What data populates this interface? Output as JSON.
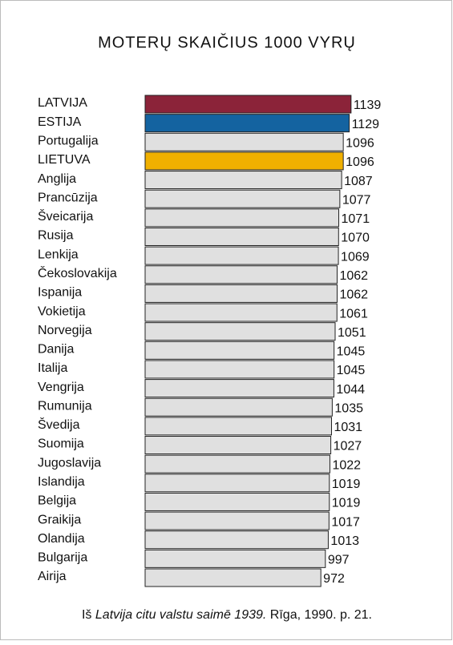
{
  "chart_data": {
    "type": "bar",
    "orientation": "horizontal",
    "title": "MOTERŲ SKAIČIUS 1000 VYRŲ",
    "categories": [
      "LATVIJA",
      "ESTIJA",
      "Portugalija",
      "LIETUVA",
      "Anglija",
      "Prancūzija",
      "Šveicarija",
      "Rusija",
      "Lenkija",
      "Čekoslovakija",
      "Ispanija",
      "Vokietija",
      "Norvegija",
      "Danija",
      "Italija",
      "Vengrija",
      "Rumunija",
      "Švedija",
      "Suomija",
      "Jugoslavija",
      "Islandija",
      "Belgija",
      "Graikija",
      "Olandija",
      "Bulgarija",
      "Airija"
    ],
    "values": [
      1139,
      1129,
      1096,
      1096,
      1087,
      1077,
      1071,
      1070,
      1069,
      1062,
      1062,
      1061,
      1051,
      1045,
      1045,
      1044,
      1035,
      1031,
      1027,
      1022,
      1019,
      1019,
      1017,
      1013,
      997,
      972
    ],
    "colors": [
      "#8b2339",
      "#1463a0",
      "#e0e0e0",
      "#f0b000",
      "#e0e0e0",
      "#e0e0e0",
      "#e0e0e0",
      "#e0e0e0",
      "#e0e0e0",
      "#e0e0e0",
      "#e0e0e0",
      "#e0e0e0",
      "#e0e0e0",
      "#e0e0e0",
      "#e0e0e0",
      "#e0e0e0",
      "#e0e0e0",
      "#e0e0e0",
      "#e0e0e0",
      "#e0e0e0",
      "#e0e0e0",
      "#e0e0e0",
      "#e0e0e0",
      "#e0e0e0",
      "#e0e0e0",
      "#e0e0e0"
    ],
    "source": {
      "prefix": "Iš",
      "work": "Latvija citu valstu saimē 1939.",
      "rest": "Rīga, 1990. p. 21."
    }
  }
}
